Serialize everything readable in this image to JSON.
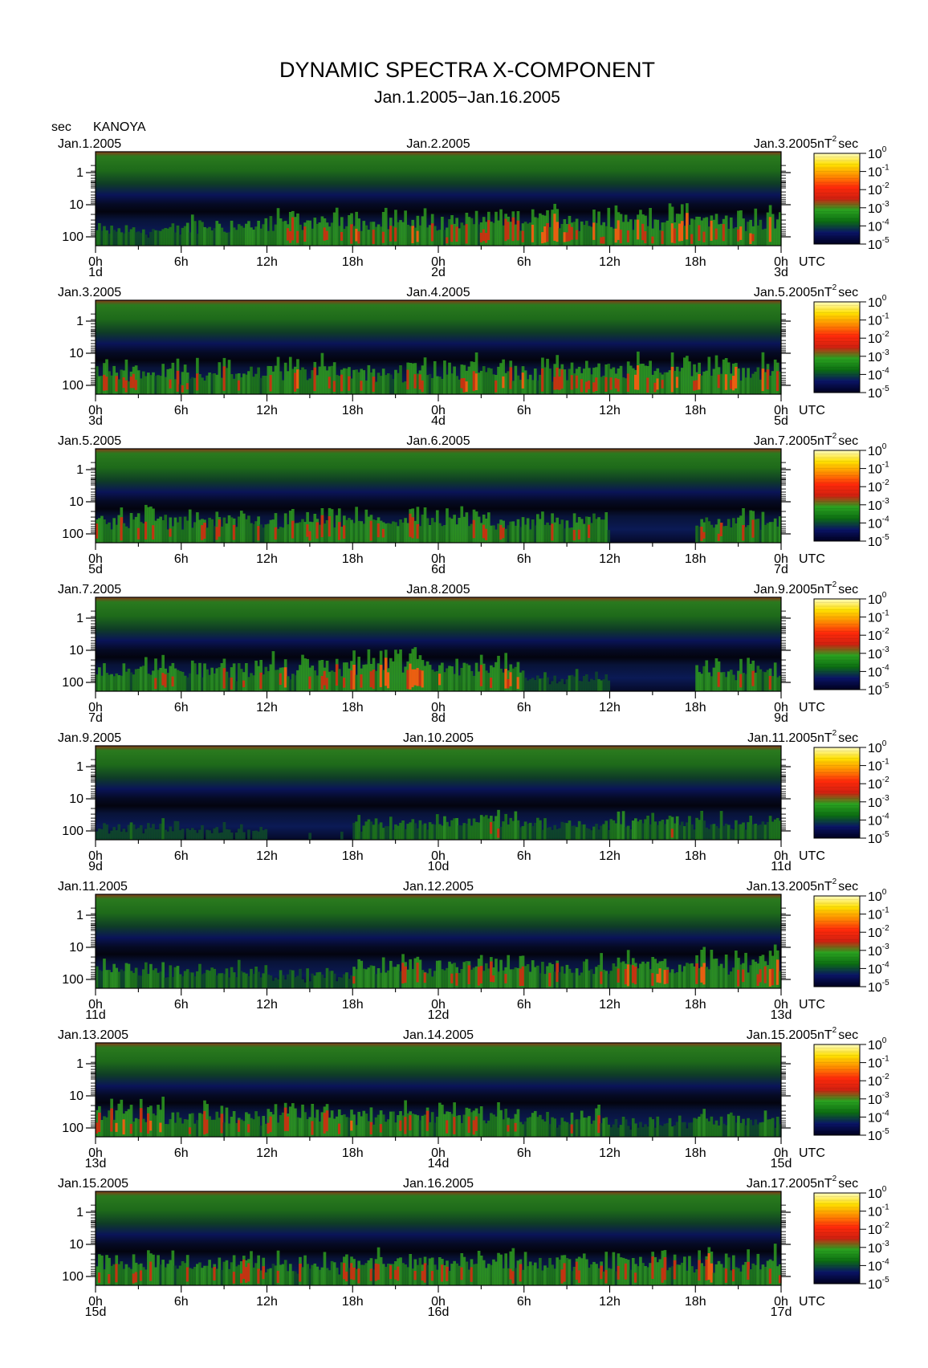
{
  "chart_data": {
    "type": "heatmap",
    "title": "DYNAMIC SPECTRA X-COMPONENT",
    "subtitle": "Jan.1.2005−Jan.16.2005",
    "station": "KANOYA",
    "y_unit_label": "sec",
    "y_axis": {
      "scale": "log",
      "range_sec": [
        1,
        100
      ],
      "tick_labels": [
        "1",
        "10",
        "100"
      ],
      "direction": "period increases downward"
    },
    "x_axis": {
      "unit_label": "UTC",
      "hour_ticks": [
        "0h",
        "6h",
        "12h",
        "18h",
        "0h",
        "6h",
        "12h",
        "18h",
        "0h"
      ]
    },
    "colorbar": {
      "unit_base": "nT",
      "unit_exp": "2",
      "unit_tail": "sec",
      "scale": "log",
      "ticks": [
        {
          "base": "10",
          "exp": "0"
        },
        {
          "base": "10",
          "exp": "-1"
        },
        {
          "base": "10",
          "exp": "-2"
        },
        {
          "base": "10",
          "exp": "-3"
        },
        {
          "base": "10",
          "exp": "-4"
        },
        {
          "base": "10",
          "exp": "-5"
        }
      ],
      "colors": [
        "#00001e",
        "#0a1466",
        "#0c6e12",
        "#2aa220",
        "#d02010",
        "#ff2a0a",
        "#ff8c00",
        "#ffe000",
        "#fffcc0"
      ]
    },
    "panels": [
      {
        "date_left": "Jan.1.2005",
        "date_mid": "Jan.2.2005",
        "date_right": "Jan.3.2005",
        "day_left": "1d",
        "day_mid": "2d",
        "day_right": "3d",
        "activity": [
          0.62,
          0.88,
          1.06,
          1.15,
          1.05,
          1.22,
          1.25,
          1.14
        ]
      },
      {
        "date_left": "Jan.3.2005",
        "date_mid": "Jan.4.2005",
        "date_right": "Jan.5.2005",
        "day_left": "3d",
        "day_mid": "4d",
        "day_right": "5d",
        "activity": [
          1.02,
          1.0,
          1.08,
          1.02,
          1.12,
          1.04,
          1.22,
          1.1
        ]
      },
      {
        "date_left": "Jan.5.2005",
        "date_mid": "Jan.6.2005",
        "date_right": "Jan.7.2005",
        "day_left": "5d",
        "day_mid": "6d",
        "day_right": "7d",
        "activity": [
          1.1,
          0.92,
          0.98,
          1.0,
          1.05,
          0.92,
          0.2,
          1.0
        ]
      },
      {
        "date_left": "Jan.7.2005",
        "date_mid": "Jan.8.2005",
        "date_right": "Jan.9.2005",
        "day_left": "7d",
        "day_mid": "8d",
        "day_right": "9d",
        "activity": [
          0.98,
          0.95,
          1.05,
          1.42,
          1.2,
          0.55,
          0.15,
          0.95
        ]
      },
      {
        "date_left": "Jan.9.2005",
        "date_mid": "Jan.10.2005",
        "date_right": "Jan.11.2005",
        "day_left": "9d",
        "day_mid": "10d",
        "day_right": "11d",
        "activity": [
          0.5,
          0.38,
          0.22,
          0.72,
          0.82,
          0.58,
          0.82,
          0.72
        ]
      },
      {
        "date_left": "Jan.11.2005",
        "date_mid": "Jan.12.2005",
        "date_right": "Jan.13.2005",
        "day_left": "11d",
        "day_mid": "12d",
        "day_right": "13d",
        "activity": [
          0.82,
          0.72,
          0.55,
          0.95,
          1.02,
          1.02,
          1.12,
          1.1
        ]
      },
      {
        "date_left": "Jan.13.2005",
        "date_mid": "Jan.14.2005",
        "date_right": "Jan.15.2005",
        "day_left": "13d",
        "day_mid": "14d",
        "day_right": "15d",
        "activity": [
          1.12,
          1.0,
          1.06,
          1.0,
          1.02,
          0.92,
          0.55,
          0.82
        ]
      },
      {
        "date_left": "Jan.15.2005",
        "date_mid": "Jan.16.2005",
        "date_right": "Jan.17.2005",
        "day_left": "15d",
        "day_mid": "16d",
        "day_right": "17d",
        "activity": [
          1.02,
          0.98,
          0.98,
          1.05,
          1.02,
          0.95,
          1.0,
          1.12
        ]
      }
    ]
  }
}
